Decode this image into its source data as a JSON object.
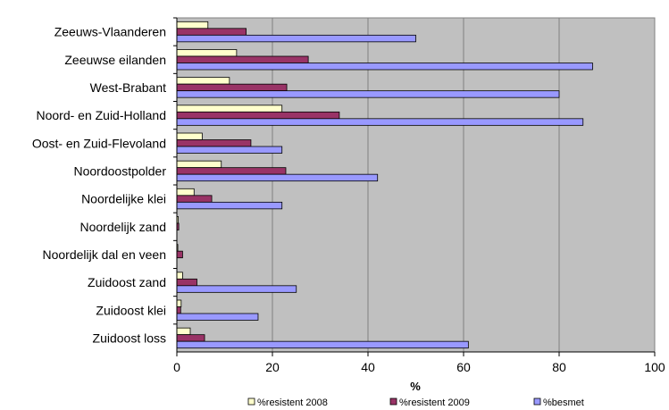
{
  "chart_data": {
    "type": "bar",
    "orientation": "horizontal",
    "categories": [
      "Zeeuws-Vlaanderen",
      "Zeeuwse eilanden",
      "West-Brabant",
      "Noord- en Zuid-Holland",
      "Oost- en Zuid-Flevoland",
      "Noordoostpolder",
      "Noordelijke klei",
      "Noordelijk zand",
      "Noordelijk dal en veen",
      "Zuidoost zand",
      "Zuidoost klei",
      "Zuidoost loss"
    ],
    "series": [
      {
        "name": "%resistent 2008",
        "color": "#ffffcc",
        "values": [
          6.5,
          12.5,
          11,
          22,
          5.3,
          9.3,
          3.6,
          0.3,
          0.2,
          1.2,
          0.9,
          2.8
        ]
      },
      {
        "name": "%resistent 2009",
        "color": "#993366",
        "values": [
          14.5,
          27.5,
          23,
          34,
          15.5,
          22.8,
          7.3,
          0.4,
          1.2,
          4.2,
          0.8,
          5.8
        ]
      },
      {
        "name": "%besmet",
        "color": "#9999ff",
        "values": [
          50,
          87,
          80,
          85,
          22,
          42,
          22,
          0,
          0,
          25,
          17,
          61
        ]
      }
    ],
    "title": "",
    "xlabel": "%",
    "ylabel": "",
    "xlim": [
      0,
      100
    ],
    "xticks": [
      0,
      20,
      40,
      60,
      80,
      100
    ],
    "grid": true,
    "plot_background": "#c0c0c0",
    "legend_position": "bottom"
  }
}
